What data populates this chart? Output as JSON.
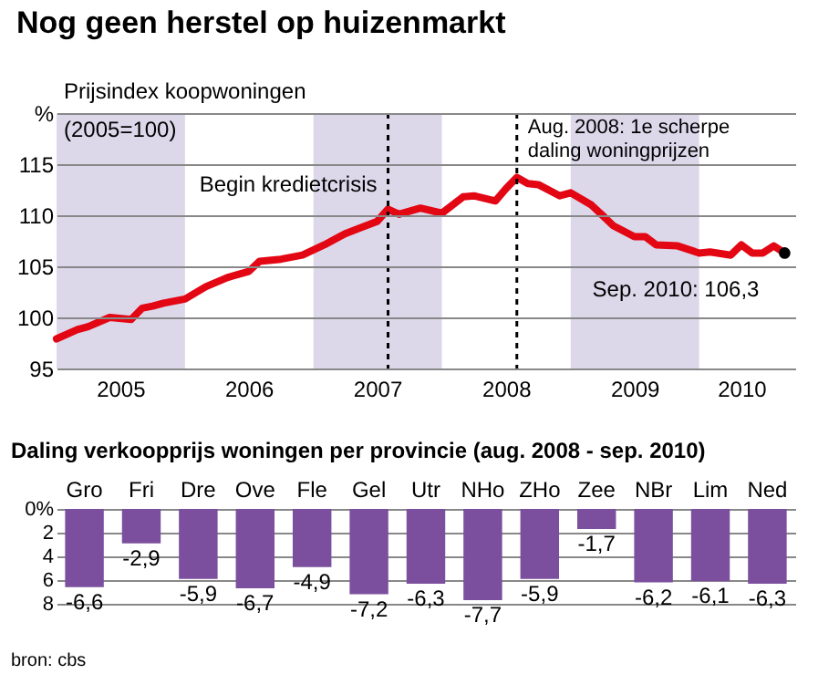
{
  "chart_data": [
    {
      "type": "line",
      "title": "Nog geen herstel op huizenmarkt",
      "ylabel": "Prijsindex koopwoningen (2005=100)",
      "x": [
        "2005-01",
        "2005-03",
        "2005-04",
        "2005-06",
        "2005-08",
        "2005-09",
        "2005-10",
        "2005-11",
        "2006-01",
        "2006-03",
        "2006-05",
        "2006-07",
        "2006-08",
        "2006-10",
        "2006-12",
        "2007-02",
        "2007-04",
        "2007-07",
        "2007-08",
        "2007-09",
        "2007-11",
        "2008-01",
        "2008-03",
        "2008-04",
        "2008-06",
        "2008-07",
        "2008-08",
        "2008-09",
        "2008-10",
        "2008-12",
        "2009-01",
        "2009-03",
        "2009-04",
        "2009-05",
        "2009-07",
        "2009-08",
        "2009-09",
        "2009-11",
        "2010-01",
        "2010-02",
        "2010-04",
        "2010-05",
        "2010-06",
        "2010-07",
        "2010-08",
        "2010-09"
      ],
      "series": [
        {
          "color": "#e30613",
          "values": [
            97.9,
            98.8,
            99.1,
            100.0,
            99.8,
            100.9,
            101.1,
            101.4,
            101.8,
            103.0,
            103.9,
            104.5,
            105.5,
            105.7,
            106.1,
            107.1,
            108.2,
            109.4,
            110.6,
            110.1,
            110.7,
            110.2,
            111.8,
            111.9,
            111.4,
            112.6,
            113.7,
            113.1,
            113.0,
            111.9,
            112.2,
            111.0,
            110.0,
            109.0,
            107.9,
            107.9,
            107.1,
            107.0,
            106.3,
            106.4,
            106.1,
            107.1,
            106.3,
            106.3,
            107.0,
            106.3
          ]
        }
      ],
      "xlim": [
        "2005-01",
        "2010-10"
      ],
      "xticks": [
        {
          "value": "2005-07",
          "label": "2005"
        },
        {
          "value": "2006-07",
          "label": "2006"
        },
        {
          "value": "2007-07",
          "label": "2007"
        },
        {
          "value": "2008-07",
          "label": "2008"
        },
        {
          "value": "2009-07",
          "label": "2009"
        },
        {
          "value": "2010-05",
          "label": "2010"
        }
      ],
      "ylim": [
        95,
        120
      ],
      "yticks": [
        95,
        100,
        105,
        110,
        115,
        {
          "value": 120,
          "label": "%"
        }
      ],
      "grid": "y",
      "bands": [
        {
          "axis": "x",
          "from": "2005-01",
          "to": "2006-01",
          "color": "#ddd7ea"
        },
        {
          "axis": "x",
          "from": "2007-01",
          "to": "2008-01",
          "color": "#ddd7ea"
        },
        {
          "axis": "x",
          "from": "2009-01",
          "to": "2010-01",
          "color": "#ddd7ea"
        }
      ],
      "ref_lines": [
        {
          "axis": "x",
          "value": "2007-08",
          "label": "Begin kredietcrisis",
          "line_style": "dotted"
        },
        {
          "axis": "x",
          "value": "2008-08",
          "label": "Aug. 2008: 1e scherpe daling woningprijzen",
          "line_style": "dotted"
        }
      ],
      "annotations": [
        {
          "text": "Sep. 2010: 106,3",
          "x": "2010-09",
          "y": 106.3
        }
      ]
    },
    {
      "type": "bar",
      "title": "Daling verkoopprijs woningen per provincie (aug. 2008 - sep. 2010)",
      "categories": [
        "Gro",
        "Fri",
        "Dre",
        "Ove",
        "Fle",
        "Gel",
        "Utr",
        "NHo",
        "ZHo",
        "Zee",
        "NBr",
        "Lim",
        "Ned"
      ],
      "values": [
        -6.6,
        -2.9,
        -5.9,
        -6.7,
        -4.9,
        -7.2,
        -6.3,
        -7.7,
        -5.9,
        -1.7,
        -6.2,
        -6.1,
        -6.3
      ],
      "value_labels": [
        "-6,6",
        "-2,9",
        "-5,9",
        "-6,7",
        "-4,9",
        "-7,2",
        "-6,3",
        "-7,7",
        "-5,9",
        "-1,7",
        "-6,2",
        "-6,1",
        "-6,3"
      ],
      "color": "#7b4f9d",
      "ylim": [
        -8,
        0
      ],
      "yticks": [
        {
          "value": 0,
          "label": "0%"
        },
        {
          "value": -2,
          "label": "2"
        },
        {
          "value": -4,
          "label": "4"
        },
        {
          "value": -6,
          "label": "6"
        },
        {
          "value": -8,
          "label": "8"
        }
      ],
      "grid": "y",
      "annotations": [
        "bron: cbs"
      ]
    }
  ]
}
